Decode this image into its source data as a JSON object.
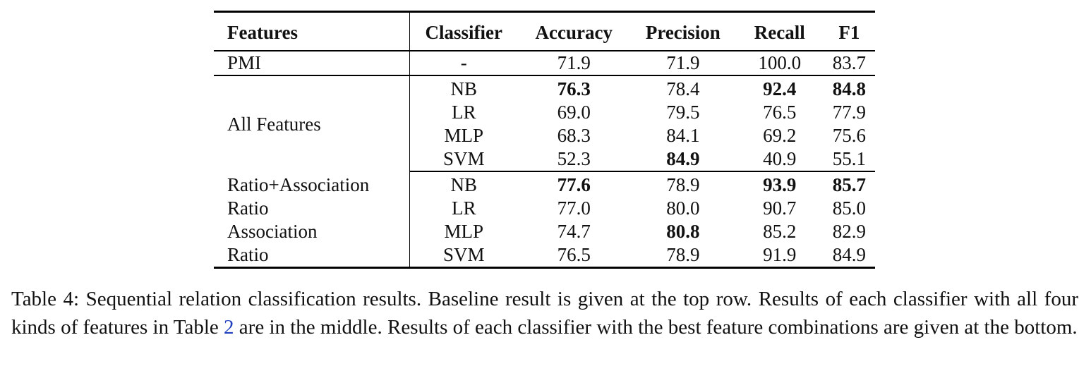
{
  "table": {
    "headers": {
      "features": "Features",
      "classifier": "Classifier",
      "accuracy": "Accuracy",
      "precision": "Precision",
      "recall": "Recall",
      "f1": "F1"
    },
    "baseline": {
      "features": "PMI",
      "classifier": "-",
      "accuracy": "71.9",
      "precision": "71.9",
      "recall": "100.0",
      "f1": "83.7"
    },
    "all_features": {
      "label": "All Features",
      "rows": [
        {
          "classifier": "NB",
          "accuracy": "76.3",
          "precision": "78.4",
          "recall": "92.4",
          "f1": "84.8"
        },
        {
          "classifier": "LR",
          "accuracy": "69.0",
          "precision": "79.5",
          "recall": "76.5",
          "f1": "77.9"
        },
        {
          "classifier": "MLP",
          "accuracy": "68.3",
          "precision": "84.1",
          "recall": "69.2",
          "f1": "75.6"
        },
        {
          "classifier": "SVM",
          "accuracy": "52.3",
          "precision": "84.9",
          "recall": "40.9",
          "f1": "55.1"
        }
      ]
    },
    "best_combinations": {
      "rows": [
        {
          "features": "Ratio+Association",
          "classifier": "NB",
          "accuracy": "77.6",
          "precision": "78.9",
          "recall": "93.9",
          "f1": "85.7"
        },
        {
          "features": "Ratio",
          "classifier": "LR",
          "accuracy": "77.0",
          "precision": "80.0",
          "recall": "90.7",
          "f1": "85.0"
        },
        {
          "features": "Association",
          "classifier": "MLP",
          "accuracy": "74.7",
          "precision": "80.8",
          "recall": "85.2",
          "f1": "82.9"
        },
        {
          "features": "Ratio",
          "classifier": "SVM",
          "accuracy": "76.5",
          "precision": "78.9",
          "recall": "91.9",
          "f1": "84.9"
        }
      ]
    }
  },
  "caption": {
    "part1": "Table 4: Sequential relation classification results. Baseline result is given at the top row. Results of each classifier with all four kinds of features in Table ",
    "ref": "2",
    "part2": " are in the middle. Results of each classifier with the best feature combinations are given at the bottom."
  }
}
